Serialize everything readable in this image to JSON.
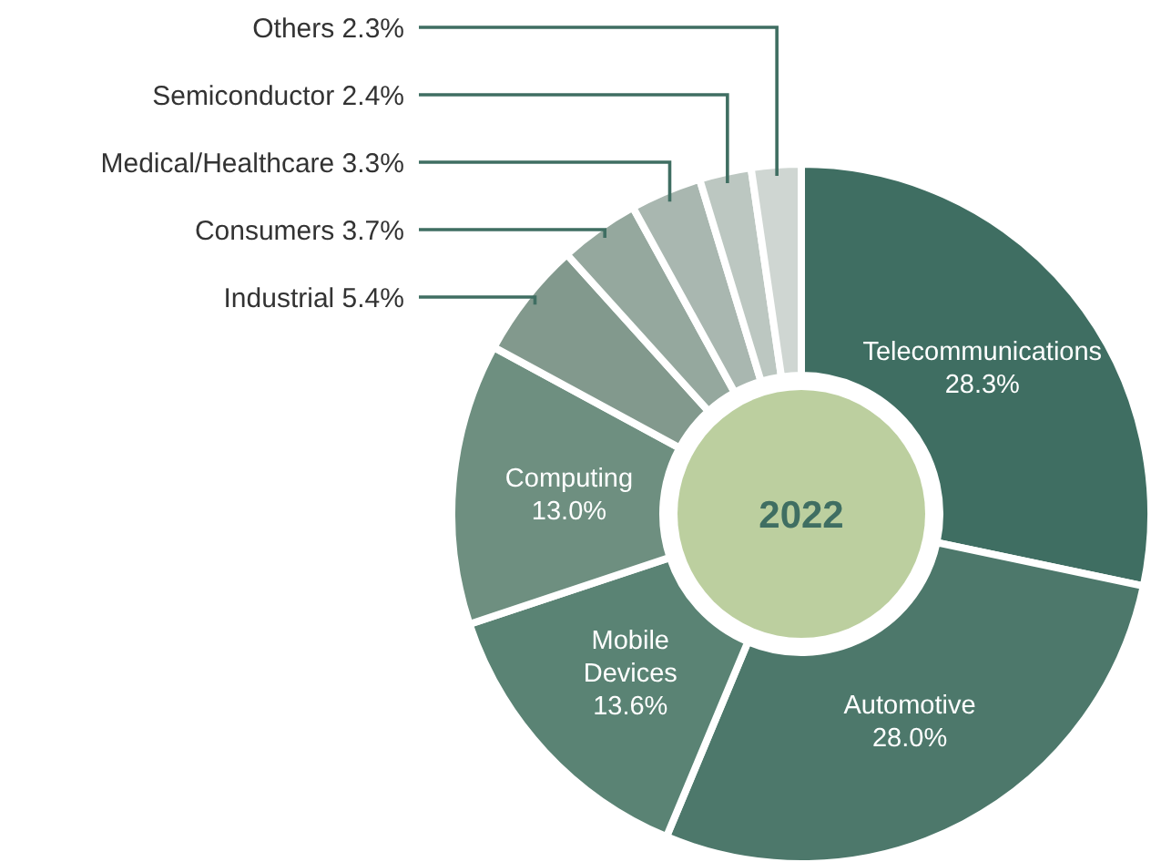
{
  "chart_data": {
    "type": "donut",
    "title": "2022",
    "categories": [
      "Telecommunications",
      "Automotive",
      "Mobile Devices",
      "Computing",
      "Industrial",
      "Consumers",
      "Medical/Healthcare",
      "Semiconductor",
      "Others"
    ],
    "values": [
      28.3,
      28.0,
      13.6,
      13.0,
      5.4,
      3.7,
      3.3,
      2.4,
      2.3
    ],
    "value_labels": [
      "28.3%",
      "28.0%",
      "13.6%",
      "13.0%",
      "5.4%",
      "3.7%",
      "3.3%",
      "2.4%",
      "2.3%"
    ],
    "colors": [
      "#3f6e62",
      "#4d786b",
      "#5a8374",
      "#6e8f80",
      "#82998d",
      "#95a89e",
      "#a9b7b0",
      "#bcc7c1",
      "#cfd6d2"
    ]
  }
}
